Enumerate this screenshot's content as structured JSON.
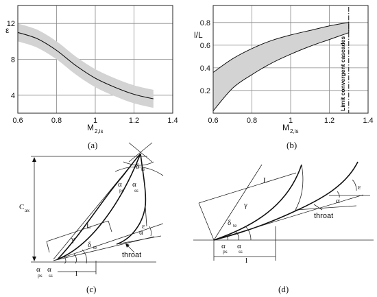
{
  "chart_data": [
    {
      "type": "area",
      "panel_caption": "(a)",
      "ylabel": "ε",
      "xlabel_main": "M",
      "xlabel_sub": "2,is",
      "xlim": [
        0.6,
        1.4
      ],
      "ylim": [
        2,
        14
      ],
      "xticks": [
        "0.6",
        "0.8",
        "1",
        "1.2",
        "1.4"
      ],
      "yticks": [
        "4",
        "8",
        "12"
      ],
      "grid": true,
      "series": [
        {
          "x": [
            0.6,
            0.7,
            0.8,
            0.9,
            1.0,
            1.1,
            1.2,
            1.3
          ],
          "values": [
            11.0,
            10.3,
            9.0,
            7.3,
            5.9,
            4.9,
            4.1,
            3.6
          ],
          "lower": [
            10.0,
            9.3,
            8.0,
            6.3,
            4.9,
            3.9,
            3.1,
            2.6
          ],
          "upper": [
            12.0,
            11.3,
            10.0,
            8.3,
            6.9,
            5.9,
            5.1,
            4.6
          ]
        }
      ]
    },
    {
      "type": "area",
      "panel_caption": "(b)",
      "ylabel": "l/L",
      "xlabel_main": "M",
      "xlabel_sub": "2,is",
      "xlim": [
        0.6,
        1.4
      ],
      "ylim": [
        0.0,
        0.95
      ],
      "xticks": [
        "0.6",
        "0.8",
        "1",
        "1.2",
        "1.4"
      ],
      "yticks": [
        "0.2",
        "0.4",
        "0.6",
        "0.8"
      ],
      "grid": true,
      "annotation": "Limit convergent cascades",
      "annotation_x": 1.3,
      "series": [
        {
          "x": [
            0.6,
            0.7,
            0.8,
            0.9,
            1.0,
            1.1,
            1.2,
            1.3
          ],
          "lower": [
            0.02,
            0.22,
            0.34,
            0.44,
            0.52,
            0.59,
            0.65,
            0.71
          ],
          "upper": [
            0.36,
            0.48,
            0.57,
            0.64,
            0.69,
            0.73,
            0.77,
            0.8
          ]
        }
      ]
    }
  ],
  "diagram_c": {
    "caption": "(c)",
    "cax_main": "C",
    "cax_sub": "ax",
    "delta_main": "δ",
    "delta_sub": "te",
    "alpha_main": "α",
    "ps_sub": "ps",
    "ss_sub": "ss",
    "gamma": "γ",
    "chord_L": "L",
    "chord_l": "l",
    "epsilon": "ε",
    "throat": "throat"
  },
  "diagram_d": {
    "caption": "(d)",
    "chord_L": "L",
    "chord_l": "l",
    "gamma": "γ",
    "delta_main": "δ",
    "delta_sub": "te",
    "alpha_main": "α",
    "ps_sub": "ps",
    "ss_sub": "ss",
    "epsilon": "ε",
    "throat": "throat"
  }
}
